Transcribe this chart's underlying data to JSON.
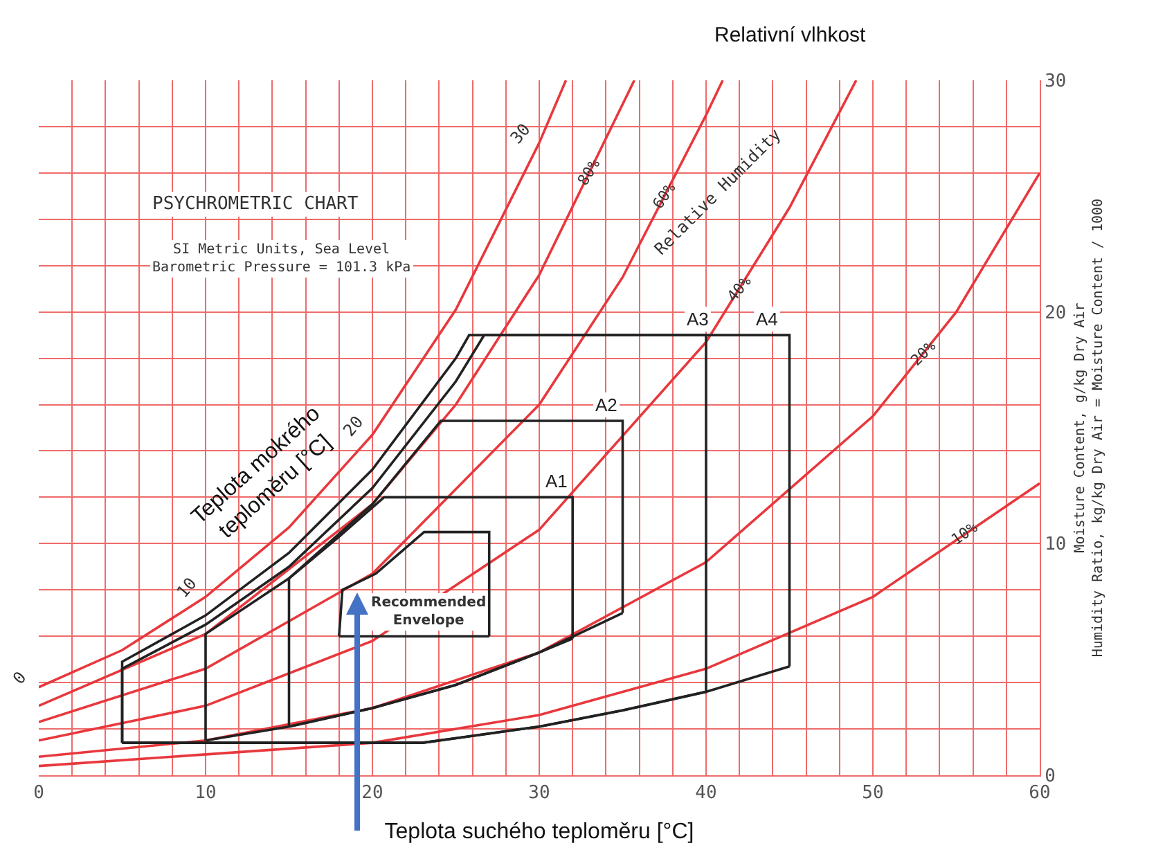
{
  "chart_data": {
    "type": "line",
    "title": "PSYCHROMETRIC CHART",
    "subtitle": "SI Metric Units, Sea Level\nBarometric Pressure = 101.3 kPa",
    "xlabel": "Teplota suchého teploměru [°C]",
    "ylabel": "Moisture Content, g/kg Dry Air\nHumidity Ratio, kg/kg Dry Air = Moisture Content / 1000",
    "xlim": [
      0,
      60
    ],
    "ylim": [
      0,
      30
    ],
    "xticks": [
      0,
      {
        "value": 2,
        "label": null
      },
      {
        "value": 4,
        "label": null
      },
      {
        "value": 6,
        "label": null
      },
      {
        "value": 8,
        "label": null
      },
      10,
      {
        "value": 12,
        "label": null
      },
      {
        "value": 14,
        "label": null
      },
      {
        "value": 16,
        "label": null
      },
      {
        "value": 18,
        "label": null
      },
      20,
      {
        "value": 22,
        "label": null
      },
      {
        "value": 24,
        "label": null
      },
      {
        "value": 26,
        "label": null
      },
      {
        "value": 28,
        "label": null
      },
      30,
      {
        "value": 32,
        "label": null
      },
      {
        "value": 34,
        "label": null
      },
      {
        "value": 36,
        "label": null
      },
      {
        "value": 38,
        "label": null
      },
      40,
      {
        "value": 42,
        "label": null
      },
      {
        "value": 44,
        "label": null
      },
      {
        "value": 46,
        "label": null
      },
      {
        "value": 48,
        "label": null
      },
      50,
      {
        "value": 52,
        "label": null
      },
      {
        "value": 54,
        "label": null
      },
      {
        "value": 56,
        "label": null
      },
      {
        "value": 58,
        "label": null
      },
      60
    ],
    "yticks": [
      0,
      {
        "value": 2,
        "label": null
      },
      {
        "value": 4,
        "label": null
      },
      {
        "value": 6,
        "label": null
      },
      {
        "value": 8,
        "label": null
      },
      10,
      {
        "value": 12,
        "label": null
      },
      {
        "value": 14,
        "label": null
      },
      {
        "value": 16,
        "label": null
      },
      {
        "value": 18,
        "label": null
      },
      20,
      {
        "value": 22,
        "label": null
      },
      {
        "value": 24,
        "label": null
      },
      {
        "value": 26,
        "label": null
      },
      {
        "value": 28,
        "label": null
      },
      30
    ],
    "grid": true,
    "marker": "none",
    "line_style": "solid",
    "series": [
      {
        "color": "#e8383d",
        "x": [
          0,
          5,
          10,
          15,
          20,
          25,
          30,
          31.6
        ],
        "values": [
          3.8,
          5.4,
          7.7,
          10.7,
          14.7,
          20.1,
          27.3,
          30
        ]
      },
      {
        "color": "#e8383d",
        "x": [
          0,
          10,
          20,
          25,
          30,
          35.7
        ],
        "values": [
          3.0,
          6.1,
          11.7,
          16.0,
          21.6,
          30
        ]
      },
      {
        "color": "#e8383d",
        "x": [
          0,
          10,
          20,
          30,
          35,
          40,
          41
        ],
        "values": [
          2.3,
          4.6,
          8.7,
          16.0,
          21.5,
          28.5,
          30
        ]
      },
      {
        "color": "#e8383d",
        "x": [
          0,
          10,
          20,
          30,
          40,
          45,
          49
        ],
        "values": [
          1.5,
          3.0,
          5.8,
          10.6,
          18.7,
          24.5,
          30
        ]
      },
      {
        "color": "#e8383d",
        "x": [
          0,
          10,
          20,
          30,
          40,
          50,
          55,
          60
        ],
        "values": [
          0.8,
          1.5,
          2.9,
          5.3,
          9.2,
          15.5,
          20.0,
          26.0
        ]
      },
      {
        "color": "#e8383d",
        "x": [
          0,
          20,
          30,
          40,
          50,
          60
        ],
        "values": [
          0.4,
          1.4,
          2.6,
          4.6,
          7.7,
          12.6
        ]
      },
      {
        "color": "#222222",
        "x": [
          18,
          18.2,
          20.2,
          23.1,
          27,
          27
        ],
        "values": [
          6.0,
          8.0,
          8.7,
          10.5,
          10.5,
          6.0
        ]
      },
      {
        "color": "#222222",
        "x": [
          18,
          27
        ],
        "values": [
          6.0,
          6.0
        ]
      },
      {
        "color": "#222222",
        "x": [
          15,
          15,
          18,
          20.7,
          32,
          32
        ],
        "values": [
          2.1,
          8.5,
          10.3,
          12,
          12,
          5.9
        ]
      },
      {
        "color": "#222222",
        "x": [
          15,
          20,
          25,
          30,
          32
        ],
        "values": [
          2.1,
          2.9,
          3.9,
          5.3,
          5.9
        ]
      },
      {
        "color": "#222222",
        "x": [
          10,
          10,
          15,
          20,
          24.1,
          35,
          35
        ],
        "values": [
          1.5,
          6.1,
          8.5,
          11.7,
          15.3,
          15.3,
          7.0
        ]
      },
      {
        "color": "#222222",
        "x": [
          10,
          15,
          20,
          25,
          30,
          35
        ],
        "values": [
          1.5,
          2.1,
          2.9,
          3.9,
          5.3,
          7.0
        ]
      },
      {
        "color": "#222222",
        "x": [
          5,
          5,
          10,
          15,
          20,
          25,
          26.7,
          40,
          40
        ],
        "values": [
          1.4,
          4.6,
          6.5,
          9.0,
          12.4,
          17.0,
          19,
          19,
          3.6
        ]
      },
      {
        "color": "#222222",
        "x": [
          5,
          23,
          25,
          30,
          35,
          40
        ],
        "values": [
          1.4,
          1.4,
          1.6,
          2.1,
          2.8,
          3.6
        ]
      },
      {
        "color": "#222222",
        "x": [
          5,
          5,
          10,
          15,
          20,
          25,
          25.8,
          45,
          45
        ],
        "values": [
          1.4,
          4.9,
          6.9,
          9.6,
          13.2,
          18.0,
          19,
          19,
          4.7
        ]
      },
      {
        "color": "#222222",
        "x": [
          5,
          23,
          25,
          30,
          35,
          40,
          45
        ],
        "values": [
          1.4,
          1.4,
          1.6,
          2.1,
          2.8,
          3.6,
          4.7
        ]
      }
    ],
    "annotations": [
      "Relativní vlhkost",
      "Teplota mokrého\nteploměru [°C]",
      "A1",
      "A2",
      "A3",
      "A4",
      "Recommended\nEnvelope",
      "Relative Humidity",
      {
        "text": "80%",
        "x": 33,
        "y": 26.0
      },
      {
        "text": "60%",
        "x": 37.5,
        "y": 25.0
      },
      {
        "text": "40%",
        "x": 42,
        "y": 21.0
      },
      {
        "text": "20%",
        "x": 53,
        "y": 18.2
      },
      {
        "text": "10%",
        "x": 55.5,
        "y": 10.4
      },
      {
        "text": "0",
        "x": 0,
        "y": 3.8
      },
      {
        "text": "10",
        "x": 10,
        "y": 7.7
      },
      {
        "text": "20",
        "x": 20,
        "y": 14.7
      },
      {
        "text": "30",
        "x": 30,
        "y": 27.3
      }
    ]
  }
}
